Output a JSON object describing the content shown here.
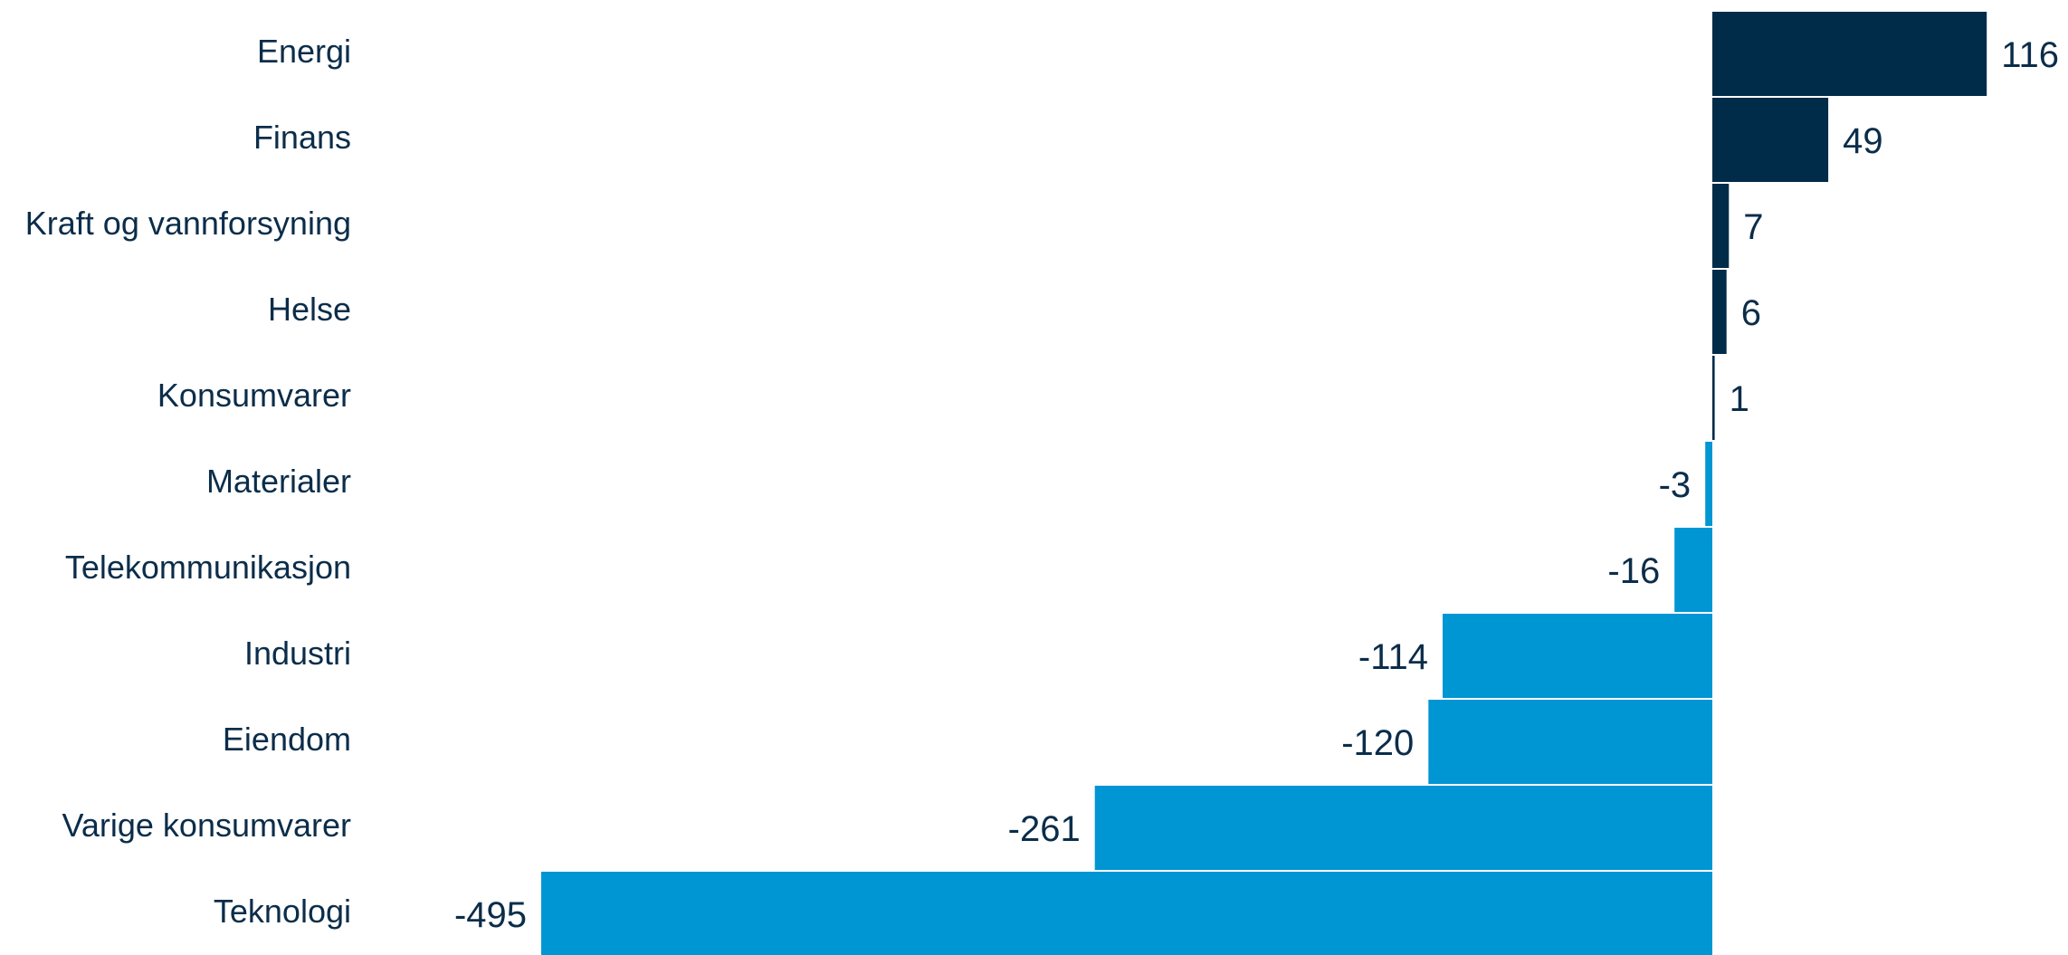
{
  "chart_data": {
    "type": "bar",
    "orientation": "horizontal",
    "categories": [
      "Energi",
      "Finans",
      "Kraft og vannforsyning",
      "Helse",
      "Konsumvarer",
      "Materialer",
      "Telekommunikasjon",
      "Industri",
      "Eiendom",
      "Varige konsumvarer",
      "Teknologi"
    ],
    "values": [
      116,
      49,
      7,
      6,
      1,
      -3,
      -16,
      -114,
      -120,
      -261,
      -495
    ],
    "title": "",
    "xlabel": "",
    "ylabel": "",
    "xlim": [
      -495,
      116
    ],
    "grid": false,
    "legend": "none",
    "colors": {
      "positive": "#002b49",
      "negative": "#0095d3"
    }
  }
}
